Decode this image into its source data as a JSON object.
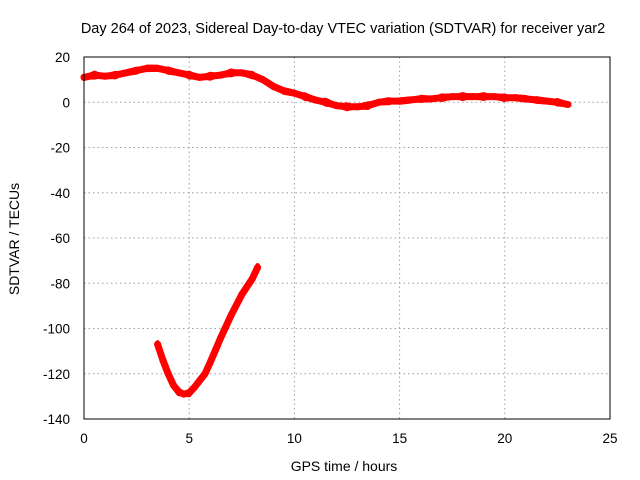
{
  "chart_data": {
    "type": "line",
    "title": "Day 264 of 2023, Sidereal Day-to-day VTEC variation (SDTVAR) for receiver yar2",
    "xlabel": "GPS time / hours",
    "ylabel": "SDTVAR / TECUs",
    "xlim": [
      0,
      25
    ],
    "ylim": [
      -140,
      20
    ],
    "xticks": [
      0,
      5,
      10,
      15,
      20,
      25
    ],
    "yticks": [
      -140,
      -120,
      -100,
      -80,
      -60,
      -40,
      -20,
      0,
      20
    ],
    "grid": true,
    "legend": "none",
    "series_color": "#ff0000",
    "series": [
      {
        "name": "main",
        "x": [
          0.0,
          0.5,
          1.0,
          1.5,
          2.0,
          2.5,
          3.0,
          3.5,
          4.0,
          4.5,
          5.0,
          5.5,
          6.0,
          6.5,
          7.0,
          7.5,
          8.0,
          8.5,
          9.0,
          9.5,
          10.0,
          10.5,
          11.0,
          11.5,
          12.0,
          12.5,
          13.0,
          13.5,
          14.0,
          14.5,
          15.0,
          15.5,
          16.0,
          16.5,
          17.0,
          17.5,
          18.0,
          18.5,
          19.0,
          19.5,
          20.0,
          20.5,
          21.0,
          21.5,
          22.0,
          22.5,
          23.0
        ],
        "y": [
          11,
          12,
          11.5,
          12,
          13,
          14,
          15,
          15,
          14,
          13,
          12,
          11,
          11.5,
          12,
          13,
          13,
          12,
          10,
          7,
          5,
          4,
          2.5,
          1,
          0,
          -1.5,
          -2,
          -2,
          -1.5,
          0,
          0.5,
          0.5,
          1,
          1.5,
          1.5,
          2,
          2.5,
          2.5,
          2.5,
          2.5,
          2.5,
          2,
          2,
          1.5,
          1,
          0.5,
          0,
          -1
        ]
      },
      {
        "name": "dip",
        "x": [
          3.5,
          3.75,
          4.0,
          4.25,
          4.5,
          4.75,
          5.0,
          5.25,
          5.5,
          5.75,
          6.0,
          6.5,
          7.0,
          7.5,
          8.0,
          8.25
        ],
        "y": [
          -107,
          -114,
          -120,
          -125,
          -128,
          -129,
          -128.5,
          -126,
          -123,
          -120,
          -115,
          -104,
          -94,
          -85,
          -78,
          -73
        ]
      }
    ]
  }
}
